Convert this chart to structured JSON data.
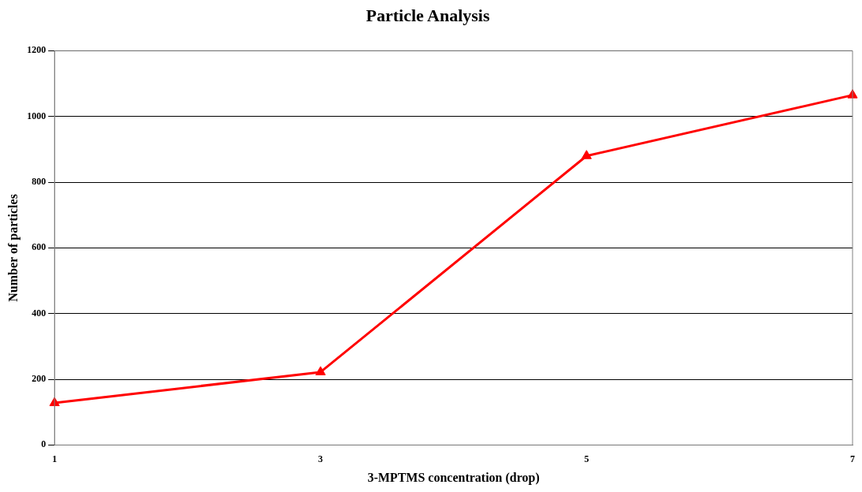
{
  "chart_data": {
    "type": "line",
    "title": "Particle Analysis",
    "xlabel": "3-MPTMS concentration (drop)",
    "ylabel": "Number of particles",
    "categories": [
      "1",
      "3",
      "5",
      "7"
    ],
    "series": [
      {
        "color": "#ff0000",
        "values": [
          128,
          222,
          880,
          1065
        ]
      }
    ],
    "ylim": [
      0,
      1200
    ],
    "yticks": [
      0,
      200,
      400,
      600,
      800,
      1000,
      1200
    ],
    "grid": "y",
    "legend": false,
    "marker": "triangle",
    "line_style": "solid"
  }
}
